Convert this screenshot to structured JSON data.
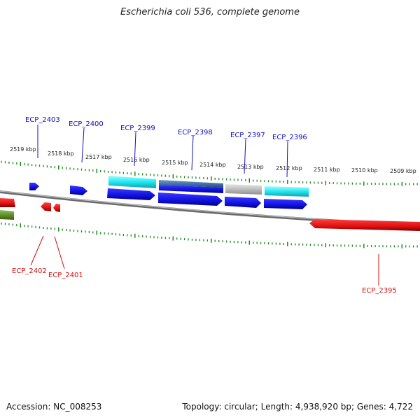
{
  "title": "Escherichia coli 536, complete genome",
  "footer": {
    "accession": "Accession: NC_008253",
    "summary": "Topology: circular; Length: 4,938,920 bp; Genes: 4,722"
  },
  "scale_labels": [
    "2519 kbp",
    "2518 kbp",
    "2517 kbp",
    "2516 kbp",
    "2515 kbp",
    "2514 kbp",
    "2513 kbp",
    "2512 kbp",
    "2511 kbp",
    "2510 kbp",
    "2509 kbp"
  ],
  "gene_labels": {
    "ECP_2403": "ECP_2403",
    "ECP_2400": "ECP_2400",
    "ECP_2399": "ECP_2399",
    "ECP_2398": "ECP_2398",
    "ECP_2397": "ECP_2397",
    "ECP_2396": "ECP_2396",
    "ECP_2402": "ECP_2402",
    "ECP_2401": "ECP_2401",
    "ECP_2395": "ECP_2395"
  },
  "colors": {
    "forward_cds": "#1010e0",
    "reverse_cds": "#e01010",
    "rna_cyan": "#20e8f0",
    "rna_steel": "#3870a8",
    "rna_gray": "#b8b8b8",
    "olive": "#5a8a20",
    "tick": "#1a8a1a",
    "backbone": "#808080"
  }
}
